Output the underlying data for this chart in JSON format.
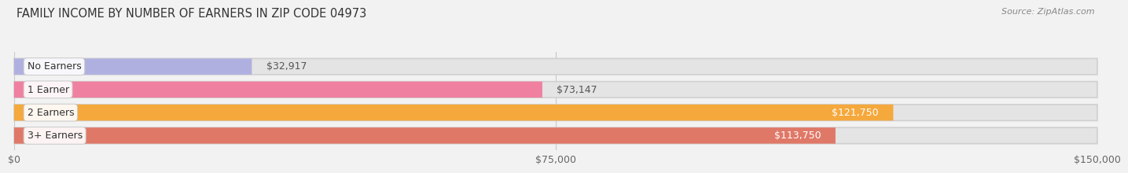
{
  "title": "FAMILY INCOME BY NUMBER OF EARNERS IN ZIP CODE 04973",
  "source": "Source: ZipAtlas.com",
  "categories": [
    "No Earners",
    "1 Earner",
    "2 Earners",
    "3+ Earners"
  ],
  "values": [
    32917,
    73147,
    121750,
    113750
  ],
  "bar_colors": [
    "#b0b0e0",
    "#f080a0",
    "#f5a83c",
    "#e07868"
  ],
  "label_colors": [
    "#444444",
    "#444444",
    "#ffffff",
    "#ffffff"
  ],
  "value_inside_colors": [
    "#444444",
    "#444444",
    "#ffffff",
    "#ffffff"
  ],
  "x_ticks": [
    0,
    75000,
    150000
  ],
  "x_tick_labels": [
    "$0",
    "$75,000",
    "$150,000"
  ],
  "xlim": [
    0,
    150000
  ],
  "background_color": "#f2f2f2",
  "bar_bg_color": "#e4e4e4",
  "title_fontsize": 10.5,
  "source_fontsize": 8,
  "tick_fontsize": 9,
  "label_fontsize": 9,
  "value_fontsize": 9,
  "value_threshold": 90000
}
